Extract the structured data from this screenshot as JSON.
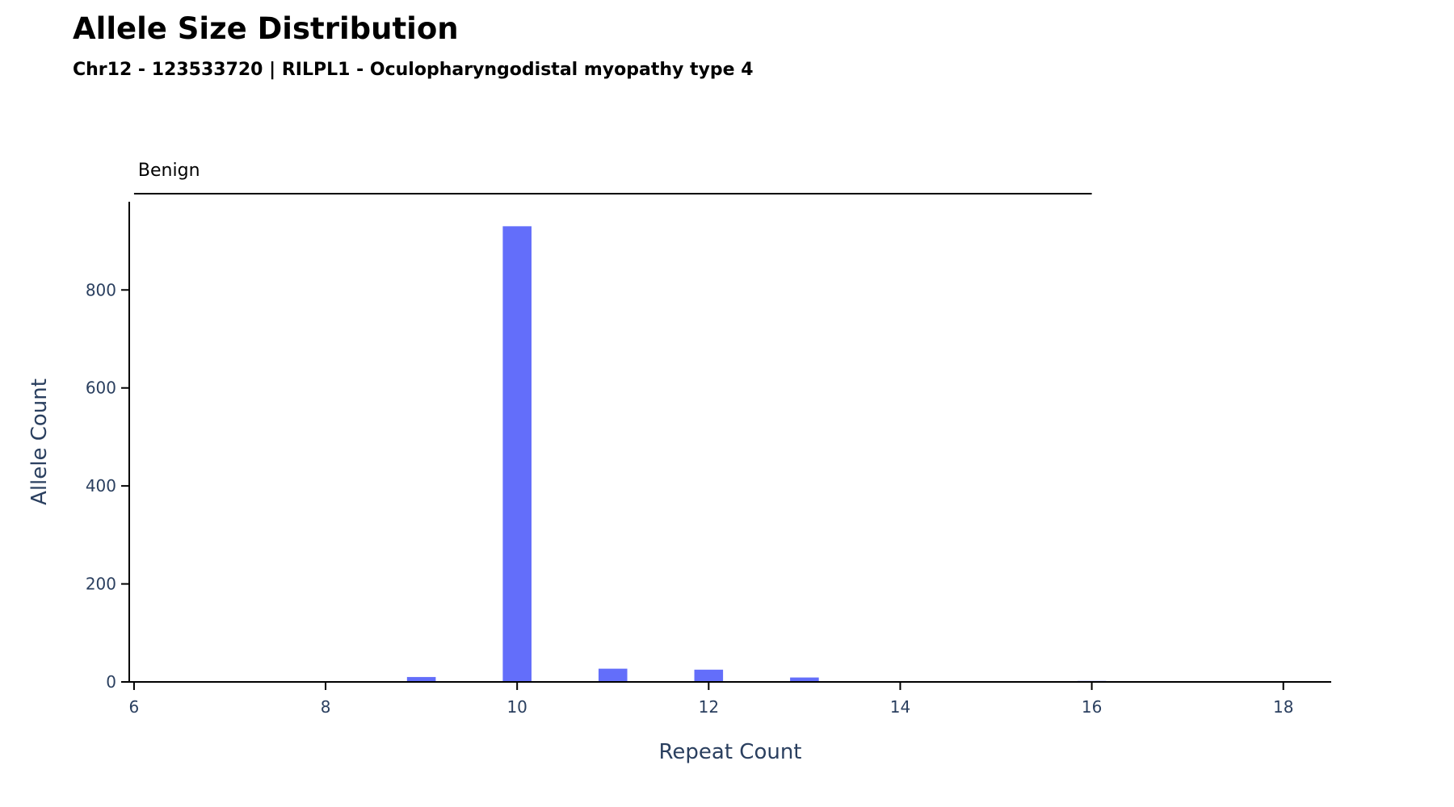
{
  "chart_data": {
    "type": "bar",
    "title": "Allele Size Distribution",
    "subtitle": "Chr12 - 123533720 | RILPL1 - Oculopharyngodistal myopathy type 4",
    "xlabel": "Repeat Count",
    "ylabel": "Allele Count",
    "xlim": [
      5.95,
      18.5
    ],
    "ylim": [
      0,
      980
    ],
    "xticks": [
      6,
      8,
      10,
      12,
      14,
      16,
      18
    ],
    "yticks": [
      0,
      200,
      400,
      600,
      800
    ],
    "bar_color": "#636efa",
    "bar_width": 0.3,
    "grid": false,
    "x": [
      9,
      10,
      11,
      12,
      13,
      16
    ],
    "values": [
      10,
      930,
      27,
      25,
      9,
      2
    ],
    "ranges": [
      {
        "label": "Benign",
        "start": 6,
        "end": 16
      }
    ]
  }
}
